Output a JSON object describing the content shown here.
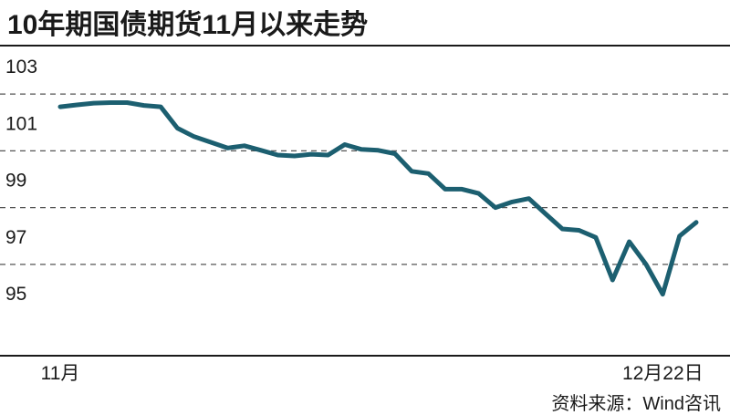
{
  "title": "10年期国债期货11月以来走势",
  "source": "资料来源：Wind咨讯",
  "colors": {
    "line": "#1c5f70",
    "grid": "#555555",
    "axis": "#1a1a1a"
  },
  "chart_data": {
    "type": "line",
    "title": "10年期国债期货11月以来走势",
    "xlabel": "",
    "ylabel": "",
    "ylim": [
      94,
      104
    ],
    "yticks": [
      95,
      97,
      99,
      101,
      103
    ],
    "grid": "horizontal-dashed",
    "x_tick_labels": [
      {
        "index": 0,
        "label": "11月"
      },
      {
        "index": 36,
        "label": "12月22日"
      }
    ],
    "series": [
      {
        "values": [
          101.55,
          101.62,
          101.68,
          101.7,
          101.7,
          101.6,
          101.55,
          100.8,
          100.5,
          100.3,
          100.1,
          100.18,
          100.02,
          99.85,
          99.82,
          99.88,
          99.85,
          100.22,
          100.05,
          100.02,
          99.9,
          99.28,
          99.2,
          98.65,
          98.65,
          98.5,
          98.0,
          98.2,
          98.32,
          97.78,
          97.25,
          97.2,
          96.95,
          95.45,
          96.8,
          96.0,
          94.95,
          97.0,
          97.48
        ]
      }
    ]
  }
}
